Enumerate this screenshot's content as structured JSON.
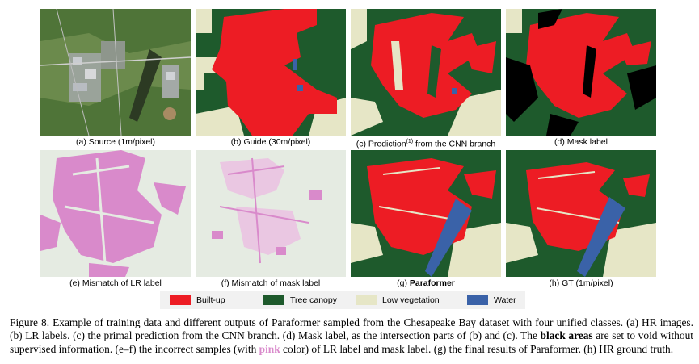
{
  "panels": [
    {
      "caption_pre": "(a) Source (1m/pixel)",
      "kind": "source"
    },
    {
      "caption_pre": "(b) Guide (30m/pixel)",
      "kind": "guide"
    },
    {
      "caption_pre": "(c) Prediction",
      "caption_sup": "(1)",
      "caption_post": " from the CNN branch",
      "kind": "pred"
    },
    {
      "caption_pre": "(d) Mask label",
      "kind": "mask"
    },
    {
      "caption_pre": "(e) Mismatch of LR label",
      "kind": "mis_lr"
    },
    {
      "caption_pre": "(f) Mismatch of mask label",
      "kind": "mis_mask"
    },
    {
      "caption_pre": "(g) ",
      "caption_bold": "Paraformer",
      "kind": "paraformer"
    },
    {
      "caption_pre": "(h) GT (1m/pixel)",
      "kind": "gt"
    }
  ],
  "legend": [
    {
      "label": "Built-up",
      "color": "#ed1c24"
    },
    {
      "label": "Tree canopy",
      "color": "#1e5a2c"
    },
    {
      "label": "Low vegetation",
      "color": "#e6e6c6"
    },
    {
      "label": "Water",
      "color": "#3a62a8"
    }
  ],
  "caption": {
    "part1": "Figure 8. Example of training data and different outputs of Paraformer sampled from the Chesapeake Bay dataset with four unified classes. (a) HR images. (b) LR labels. (c) the primal prediction from the CNN branch. (d) Mask label, as the intersection parts of (b) and (c). The ",
    "bold": "black areas",
    "part2": " are set to void without supervised information. (e–f) the incorrect samples (with ",
    "pink": "pink",
    "part3": " color) of LR label and mask label. (g) the final results of Paraformer. (h) HR ground truth."
  },
  "colors": {
    "builtup": "#ed1c24",
    "tree": "#1e5a2c",
    "lowveg": "#e6e6c6",
    "water": "#3a62a8",
    "mismatch": "#d98acb",
    "void": "#000000"
  }
}
